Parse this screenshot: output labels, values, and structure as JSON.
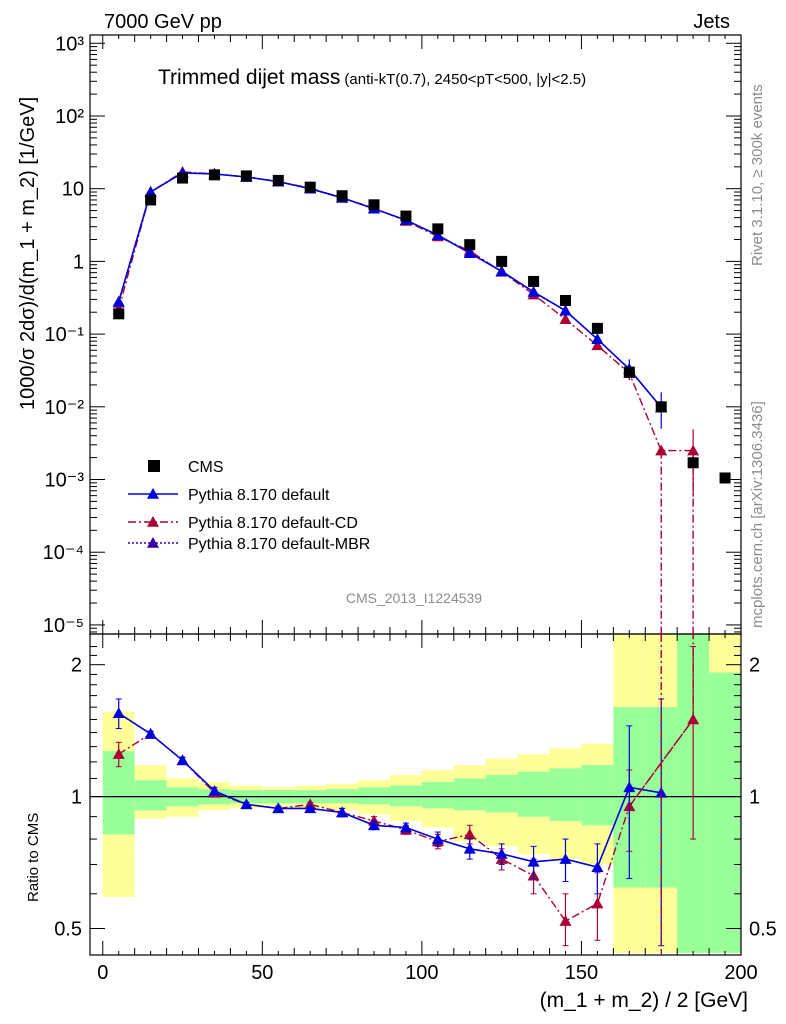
{
  "header": {
    "left": "7000 GeV pp",
    "right": "Jets"
  },
  "side_labels": {
    "top": "Rivet 3.1.10, ≥ 300k events",
    "bottom": "mcplots.cern.ch [arXiv:1306.3436]"
  },
  "analysis_id": "CMS_2013_I1224539",
  "colors": {
    "data": "#000000",
    "default": "#0000dd",
    "cd": "#aa0033",
    "mbr": "#3300aa",
    "band_outer": "#ffff99",
    "band_inner": "#99ff99"
  },
  "chart_data": [
    {
      "type": "scatter",
      "panel": "main",
      "title": "Trimmed dijet mass",
      "subtitle": "(anti-kT(0.7), 2450<pT<500, |y|<2.5)",
      "ylabel": "1000/σ 2dσ)/d(m_1 + m_2) [1/GeV]",
      "y_scale": "log",
      "ylim": [
        7.5e-06,
        1300
      ],
      "xlim": [
        -4,
        200
      ],
      "y_tick_labels": [
        "10⁻⁵",
        "10⁻⁴",
        "10⁻³",
        "10⁻²",
        "10⁻¹",
        "1",
        "10",
        "10²",
        "10³"
      ],
      "legend_position": "lower-left",
      "x": [
        5,
        15,
        25,
        35,
        45,
        55,
        65,
        75,
        85,
        95,
        105,
        115,
        125,
        135,
        145,
        155,
        165,
        175,
        185,
        195
      ],
      "series": [
        {
          "name": "CMS",
          "marker": "square",
          "values": [
            0.19,
            7,
            14,
            15.5,
            15,
            13,
            10.5,
            8,
            6,
            4.2,
            2.8,
            1.7,
            1.0,
            0.53,
            0.29,
            0.12,
            0.03,
            0.01,
            0.0017,
            0.00105
          ]
        },
        {
          "name": "Pythia 8.170 default",
          "marker": "triangle",
          "line": "solid",
          "values": [
            0.28,
            9,
            16.5,
            16,
            14.5,
            12.5,
            10,
            7.5,
            5.3,
            3.7,
            2.3,
            1.3,
            0.73,
            0.38,
            0.21,
            0.085,
            0.033,
            0.0098,
            null,
            null
          ]
        },
        {
          "name": "Pythia 8.170 default-CD",
          "marker": "triangle",
          "line": "dash-dot",
          "values": [
            0.22,
            9,
            17,
            16,
            14.5,
            12.5,
            10.2,
            7.5,
            5.4,
            3.6,
            2.2,
            1.4,
            0.72,
            0.35,
            0.16,
            0.07,
            0.029,
            0.0025,
            0.0025,
            null
          ]
        },
        {
          "name": "Pythia 8.170 default-MBR",
          "marker": "triangle",
          "line": "dotted",
          "values": [
            0.27,
            9,
            16.5,
            16,
            14.5,
            12.5,
            10,
            7.5,
            5.3,
            3.7,
            2.3,
            1.3,
            0.73,
            0.38,
            0.21,
            0.085,
            0.033,
            0.0098,
            null,
            null
          ]
        }
      ]
    },
    {
      "type": "scatter",
      "panel": "ratio",
      "ylabel": "Ratio to CMS",
      "xlabel": "(m_1 + m_2) / 2 [GeV]",
      "ylim": [
        0.435,
        2.35
      ],
      "xlim": [
        -4,
        200
      ],
      "x_ticks": [
        0,
        50,
        100,
        150,
        200
      ],
      "y_ticks": [
        0.5,
        1,
        2
      ],
      "bands": {
        "x_edges": [
          0,
          10,
          20,
          30,
          40,
          50,
          60,
          70,
          80,
          90,
          100,
          110,
          120,
          130,
          140,
          150,
          160,
          170,
          180,
          190,
          200
        ],
        "inner_low": [
          0.82,
          0.93,
          0.95,
          0.96,
          0.965,
          0.965,
          0.965,
          0.965,
          0.96,
          0.95,
          0.94,
          0.93,
          0.92,
          0.9,
          0.88,
          0.86,
          0.62,
          0.62,
          0.44,
          0.44
        ],
        "inner_high": [
          1.27,
          1.09,
          1.05,
          1.04,
          1.035,
          1.035,
          1.035,
          1.04,
          1.05,
          1.06,
          1.08,
          1.1,
          1.12,
          1.14,
          1.16,
          1.18,
          1.6,
          1.6,
          2.35,
          1.92
        ],
        "outer_low": [
          0.59,
          0.89,
          0.9,
          0.93,
          0.94,
          0.95,
          0.94,
          0.93,
          0.91,
          0.88,
          0.85,
          0.79,
          0.77,
          0.74,
          0.72,
          0.7,
          0.44,
          0.44,
          0.44,
          0.44
        ],
        "outer_high": [
          1.56,
          1.18,
          1.1,
          1.08,
          1.06,
          1.05,
          1.06,
          1.07,
          1.09,
          1.12,
          1.15,
          1.18,
          1.22,
          1.25,
          1.29,
          1.32,
          2.35,
          2.35,
          2.35,
          2.35
        ]
      },
      "x": [
        5,
        15,
        25,
        35,
        45,
        55,
        65,
        75,
        85,
        95,
        105,
        115,
        125,
        135,
        145,
        155,
        165,
        175,
        185
      ],
      "series": [
        {
          "name": "Pythia 8.170 default",
          "values": [
            1.55,
            1.39,
            1.21,
            1.03,
            0.96,
            0.94,
            0.94,
            0.92,
            0.86,
            0.85,
            0.8,
            0.76,
            0.74,
            0.71,
            0.72,
            0.69,
            1.05,
            1.02,
            null
          ],
          "err": [
            0.12,
            0.02,
            0.02,
            0.02,
            0.01,
            0.01,
            0.01,
            0.02,
            0.02,
            0.02,
            0.03,
            0.04,
            0.04,
            0.06,
            0.08,
            0.09,
            0.4,
            0.65,
            null
          ]
        },
        {
          "name": "Pythia 8.170 default-CD",
          "values": [
            1.25,
            1.39,
            1.21,
            1.02,
            0.96,
            0.94,
            0.96,
            0.92,
            0.88,
            0.84,
            0.79,
            0.82,
            0.72,
            0.66,
            0.52,
            0.57,
            0.95,
            null,
            1.5
          ],
          "err": [
            0.08,
            0.02,
            0.02,
            0.02,
            0.01,
            0.01,
            0.01,
            0.02,
            0.02,
            0.02,
            0.03,
            0.04,
            0.04,
            0.06,
            0.08,
            0.1,
            0.2,
            null,
            0.7
          ]
        }
      ]
    }
  ]
}
